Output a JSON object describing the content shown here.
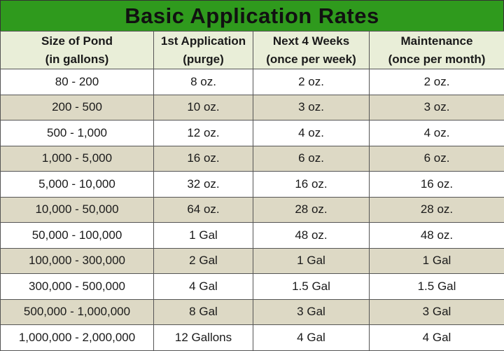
{
  "title": "Basic Application Rates",
  "headers": [
    {
      "line1": "Size of Pond",
      "line2": "(in gallons)"
    },
    {
      "line1": "1st Application",
      "line2": "(purge)"
    },
    {
      "line1": "Next 4 Weeks",
      "line2": "(once per week)"
    },
    {
      "line1": "Maintenance",
      "line2": "(once per month)"
    }
  ],
  "rows": [
    [
      "80 - 200",
      "8 oz.",
      "2 oz.",
      "2 oz."
    ],
    [
      "200 - 500",
      "10 oz.",
      "3 oz.",
      "3 oz."
    ],
    [
      "500 - 1,000",
      "12 oz.",
      "4 oz.",
      "4 oz."
    ],
    [
      "1,000 - 5,000",
      "16 oz.",
      "6 oz.",
      "6 oz."
    ],
    [
      "5,000 - 10,000",
      "32 oz.",
      "16 oz.",
      "16 oz."
    ],
    [
      "10,000 - 50,000",
      "64 oz.",
      "28 oz.",
      "28 oz."
    ],
    [
      "50,000 - 100,000",
      "1 Gal",
      "48 oz.",
      "48 oz."
    ],
    [
      "100,000 - 300,000",
      "2 Gal",
      "1 Gal",
      "1 Gal"
    ],
    [
      "300,000 - 500,000",
      "4 Gal",
      "1.5 Gal",
      "1.5 Gal"
    ],
    [
      "500,000 - 1,000,000",
      "8 Gal",
      "3 Gal",
      "3 Gal"
    ],
    [
      "1,000,000 - 2,000,000",
      "12 Gallons",
      "4 Gal",
      "4 Gal"
    ]
  ],
  "colors": {
    "title_bg": "#2f9a1d",
    "header_bg": "#e9eed8",
    "row_alt_bg": "#ddd9c5",
    "row_bg": "#ffffff"
  }
}
